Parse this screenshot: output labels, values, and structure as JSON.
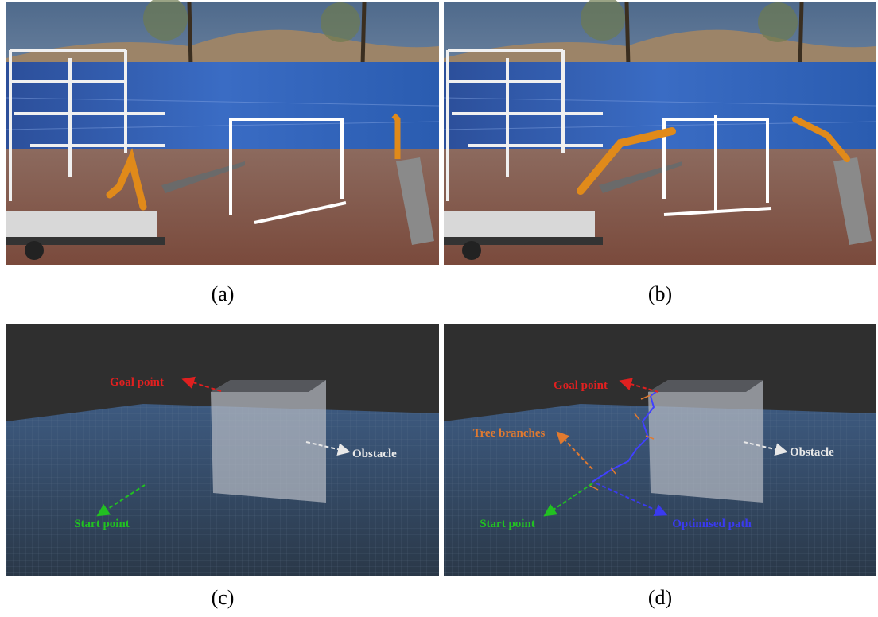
{
  "panels": [
    {
      "caption": "(a)"
    },
    {
      "caption": "(b)"
    },
    {
      "caption": "(c)",
      "labels": {
        "goal": "Goal point",
        "obstacle": "Obstacle",
        "start": "Start point"
      }
    },
    {
      "caption": "(d)",
      "labels": {
        "goal": "Goal point",
        "branches": "Tree branches",
        "obstacle": "Obstacle",
        "start": "Start point",
        "path": "Optimised path"
      }
    }
  ]
}
